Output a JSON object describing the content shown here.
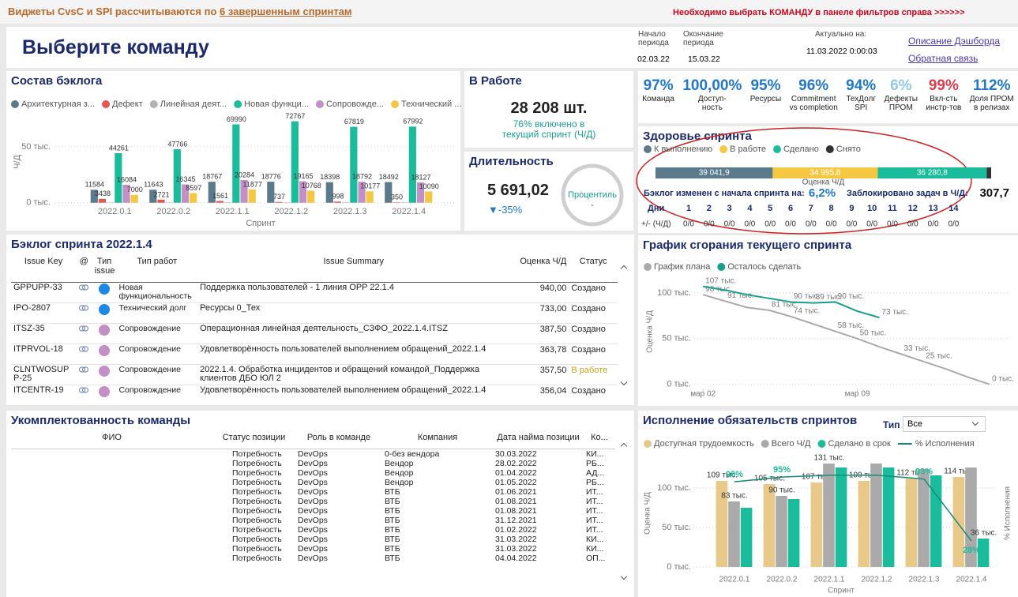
{
  "banner": {
    "left": "Виджеты CvsC и SPI рассчитываются по",
    "left_link": "6 завершенным спринтам",
    "right": "Необходимо выбрать КОМАНДУ в панеле фильтров справа >>>>>>"
  },
  "header": {
    "title": "Выберите команду",
    "start_label": "Начало\nпериода",
    "start": "02.03.22",
    "end_label": "Окончание\nпериода",
    "end": "15.03.22",
    "updated_label": "Актуально на:",
    "updated": "11.03.2022 0:00:03",
    "links": [
      "Описание Дэшборда",
      "Обратная связь"
    ]
  },
  "in_work": {
    "title": "В Работе",
    "value": "28 208 шт.",
    "note": "76% включено в\nтекущий спринт (Ч/Д)"
  },
  "duration": {
    "title": "Длительность",
    "value": "5 691,02",
    "change": "▼-35%",
    "gauge_label": "Процентиль",
    "gauge_value": "-"
  },
  "kpis": [
    {
      "value": "97%",
      "label": "Команда",
      "color": "#1f78c8"
    },
    {
      "value": "100,00%",
      "label": "Доступ-\nность",
      "color": "#1f78c8"
    },
    {
      "value": "95%",
      "label": "Ресурсы",
      "color": "#1f78c8"
    },
    {
      "value": "96%",
      "label": "Commitment\nvs completion",
      "color": "#1f78c8"
    },
    {
      "value": "94%",
      "label": "ТехДолг\nSPI",
      "color": "#1f78c8"
    },
    {
      "value": "6%",
      "label": "Дефекты\nПРОМ",
      "color": "#8fc8ec"
    },
    {
      "value": "99%",
      "label": "Вкл-сть\nинстр-тов",
      "color": "#e03b4a"
    },
    {
      "value": "112%",
      "label": "Доля ПРОМ\nв релизах",
      "color": "#1f78c8"
    }
  ],
  "sprint_health": {
    "changed_label": "Бэклог изменен с начала спринта на:",
    "changed_value": "6,2%",
    "blocked_label": "Заблокировано задач в Ч/Д:",
    "blocked_value": "307,7",
    "days_label": "Дни",
    "days": [
      1,
      2,
      3,
      4,
      5,
      6,
      7,
      8,
      9,
      10,
      11,
      12,
      13,
      14
    ],
    "delta_label": "+/- (Ч/Д)",
    "deltas": [
      "0/0",
      "0/0",
      "0/0",
      "0/0",
      "0/0",
      "0/0",
      "0/0",
      "0/0",
      "0/0",
      "0/0",
      "0/0",
      "0/0",
      "0/0",
      "0/0"
    ]
  },
  "backlog_table": {
    "title": "Бэклог спринта 2022.1.4",
    "columns": [
      "Issue Key",
      "@",
      "Тип issue",
      "Тип работ",
      "Issue Summary",
      "Оценка Ч/Д",
      "Статус"
    ],
    "rows": [
      {
        "key": "GPPUPP-33",
        "type_color": "#1e88e5",
        "work": "Новая функциональность",
        "summary": "Поддержка пользователей - 1 линия OPP 22.1.4",
        "estimate": "940,00",
        "status": "Создано"
      },
      {
        "key": "IPO-2807",
        "type_color": "#1e88e5",
        "work": "Технический долг",
        "summary": "Ресурсы 0_Тех",
        "estimate": "733,00",
        "status": "Создано"
      },
      {
        "key": "ITSZ-35",
        "type_color": "#c48fc6",
        "work": "Сопровождение",
        "summary": "Операционная линейная деятельность_СЗФО_2022.1.4.ITSZ",
        "estimate": "387,50",
        "status": "Создано"
      },
      {
        "key": "ITPRVOL-18",
        "type_color": "#c48fc6",
        "work": "Сопровождение",
        "summary": "Удовлетворённость пользователей выполнением обращений_2022.1.4",
        "estimate": "363,78",
        "status": "Создано"
      },
      {
        "key": "CLNTWOSUPP-25",
        "type_color": "#c48fc6",
        "work": "Сопровождение",
        "summary": "2022.1.4. Обработка инцидентов и обращений командой_Поддержка клиентов ДБО ЮЛ 2",
        "estimate": "357,50",
        "status": "В работе",
        "status_color": "#c8a020"
      },
      {
        "key": "ITCENTR-19",
        "type_color": "#c48fc6",
        "work": "Сопровождение",
        "summary": "Удовлетворённость пользователей выполнением обращений_2022.1.4",
        "estimate": "356,04",
        "status": "Создано"
      }
    ]
  },
  "team_table": {
    "title": "Укомплектованность команды",
    "columns": [
      "ФИО",
      "Статус позиции",
      "Роль в команде",
      "Компания",
      "Дата найма позиции",
      "Ко..."
    ],
    "rows": [
      [
        "Потребность",
        "DevOps",
        "0-без вендора",
        "30.03.2022",
        "КИ..."
      ],
      [
        "Потребность",
        "DevOps",
        "Вендор",
        "28.02.2022",
        "РБ..."
      ],
      [
        "Потребность",
        "DevOps",
        "Вендор",
        "01.04.2022",
        "АД..."
      ],
      [
        "Потребность",
        "DevOps",
        "Вендор",
        "01.05.2022",
        "РБ..."
      ],
      [
        "Потребность",
        "DevOps",
        "ВТБ",
        "01.06.2021",
        "ИТ..."
      ],
      [
        "Потребность",
        "DevOps",
        "ВТБ",
        "01.08.2021",
        "ИТ..."
      ],
      [
        "Потребность",
        "DevOps",
        "ВТБ",
        "01.08.2021",
        "ИТ..."
      ],
      [
        "Потребность",
        "DevOps",
        "ВТБ",
        "31.12.2021",
        "ИТ..."
      ],
      [
        "Потребность",
        "DevOps",
        "ВТБ",
        "01.02.2022",
        "ИТ..."
      ],
      [
        "Потребность",
        "DevOps",
        "ВТБ",
        "31.03.2022",
        "КИ..."
      ],
      [
        "Потребность",
        "DevOps",
        "ВТБ",
        "31.03.2022",
        "КИ..."
      ],
      [
        "Потребность",
        "DevOps",
        "ВТБ",
        "04.04.2022",
        "ОП..."
      ]
    ]
  },
  "chart_data": [
    {
      "type": "bar",
      "title": "Состав бэклога",
      "x_label": "Спринт",
      "y_label": "Ч/Д",
      "categories": [
        "2022.0.1",
        "2022.0.2",
        "2022.1.1",
        "2022.1.2",
        "2022.1.3",
        "2022.1.4"
      ],
      "series": [
        {
          "name": "Архитектурная з...",
          "color": "#5b7b8c",
          "data_labels": true,
          "values": [
            11584,
            11643,
            18767,
            18776,
            18398,
            18492
          ]
        },
        {
          "name": "Дефект",
          "color": "#e8574f",
          "data_labels": true,
          "values": [
            3438,
            2721,
            1561,
            737,
            998,
            350
          ]
        },
        {
          "name": "Линейная деят...",
          "color": "#b3b3b3",
          "data_labels": false,
          "values": [
            300,
            300,
            400,
            400,
            400,
            400
          ]
        },
        {
          "name": "Новая функци...",
          "color": "#1bbc9b",
          "data_labels": true,
          "values": [
            44261,
            47766,
            69990,
            72767,
            67819,
            67992
          ]
        },
        {
          "name": "Сопровожде...",
          "color": "#c48fc6",
          "data_labels": true,
          "values": [
            16084,
            16345,
            20284,
            19165,
            18792,
            18127
          ]
        },
        {
          "name": "Технический ...",
          "color": "#f5c842",
          "data_labels": true,
          "values": [
            7000,
            8597,
            11877,
            10768,
            10177,
            10090
          ]
        }
      ],
      "ylim": [
        -3000,
        76000
      ],
      "yticks": [
        {
          "value": 0,
          "label": "0 тыс."
        },
        {
          "value": 50000,
          "label": "50 тыс."
        }
      ],
      "grid": true
    },
    {
      "type": "stacked_bar",
      "title": "Здоровье спринта",
      "x_label": "Оценка Ч/Д",
      "series": [
        {
          "name": "К выполнению",
          "color": "#5b7b8c",
          "values": [
            39041.9
          ],
          "value_labels": [
            "39 041,9"
          ]
        },
        {
          "name": "В работе",
          "color": "#f5c842",
          "values": [
            34995.8
          ],
          "value_labels": [
            "34 995,8"
          ]
        },
        {
          "name": "Сделано",
          "color": "#1bbc9b",
          "values": [
            36280.8
          ],
          "value_labels": [
            "36 280,8"
          ]
        },
        {
          "name": "Снято",
          "color": "#333333",
          "values": [
            1500
          ]
        }
      ]
    },
    {
      "type": "line",
      "title": "График сгорания текущего спринта",
      "y_label": "Оценка Ч/Д",
      "series": [
        {
          "name": "График плана",
          "color": "#aaaaaa",
          "x": [
            2,
            3,
            4,
            5,
            6,
            7,
            8,
            9,
            10,
            11,
            12,
            13,
            14,
            15
          ],
          "values": [
            98000,
            91000,
            84000,
            81000,
            74000,
            66000,
            58000,
            50000,
            41000,
            33000,
            25000,
            17000,
            8000,
            0
          ],
          "value_labels": [
            "98 тыс.",
            "91 тыс.",
            null,
            "81 тыс.",
            "74 тыс.",
            null,
            "58 тыс.",
            "50 тыс.",
            null,
            "33 тыс.",
            "25 тыс.",
            null,
            null,
            "0 тыс."
          ]
        },
        {
          "name": "Осталось сделать",
          "color": "#1a9f8c",
          "x": [
            2,
            3,
            4,
            5,
            6,
            7,
            8,
            9,
            10
          ],
          "values": [
            107000,
            103000,
            98000,
            94000,
            90000,
            89000,
            90000,
            80000,
            73000
          ],
          "value_labels": [
            "107 тыс.",
            null,
            null,
            null,
            "90 тыс.",
            "89 тыс.",
            "90 тыс.",
            null,
            "73 тыс."
          ]
        }
      ],
      "xlim": [
        1.6,
        16
      ],
      "xticks": [
        {
          "value": 2,
          "label": "мар 02"
        },
        {
          "value": 9,
          "label": "мар 09"
        }
      ],
      "ylim": [
        -8000,
        118000
      ],
      "yticks": [
        {
          "value": 0,
          "label": "0 тыс."
        },
        {
          "value": 50000,
          "label": "50 тыс."
        },
        {
          "value": 100000,
          "label": "100 тыс."
        }
      ],
      "grid": true
    },
    {
      "type": "bar_line",
      "title": "Исполнение обязательств спринтов",
      "x_label": "Спринт",
      "y_label": "Оценка Ч/Д",
      "y2_label": "% Исполнения",
      "filter": {
        "label": "Тип",
        "value": "Все"
      },
      "categories": [
        "2022.0.1",
        "2022.0.2",
        "2022.1.1",
        "2022.1.2",
        "2022.1.3",
        "2022.1.4"
      ],
      "series": [
        {
          "name": "Доступная трудоемкость",
          "color": "#e8c98a",
          "values": [
            109000,
            105000,
            107000,
            109000,
            112000,
            114000
          ],
          "value_labels": [
            "109 тыс.",
            "105 тыс.",
            "107 тыс.",
            "109 тыс.",
            "112 тыс.",
            "114 тыс."
          ]
        },
        {
          "name": "Всего Ч/Д",
          "color": "#aaaaaa",
          "values": [
            83000,
            90000,
            131000,
            131000,
            124000,
            126000
          ],
          "value_labels": [
            "83 тыс.",
            "90 тыс.",
            "131 тыс.",
            null,
            null,
            null
          ]
        },
        {
          "name": "Сделано в срок",
          "color": "#1bbc9b",
          "values": [
            75000,
            86000,
            126000,
            126000,
            116000,
            36000
          ],
          "value_labels": [
            null,
            null,
            null,
            null,
            null,
            "36 тыс."
          ]
        },
        {
          "name": "% Исполнения",
          "color": "#138a78",
          "axis": "y2",
          "values": [
            90,
            95,
            97,
            97,
            93,
            28
          ],
          "value_labels": [
            "90%",
            "95%",
            null,
            null,
            "93%",
            "28%"
          ]
        }
      ],
      "ylim": [
        -8000,
        138000
      ],
      "yticks": [
        {
          "value": 0,
          "label": "0 тыс."
        },
        {
          "value": 50000,
          "label": "50 тыс."
        },
        {
          "value": 100000,
          "label": "100 тыс."
        }
      ],
      "y2lim": [
        -6,
        115
      ],
      "grid": true
    }
  ]
}
